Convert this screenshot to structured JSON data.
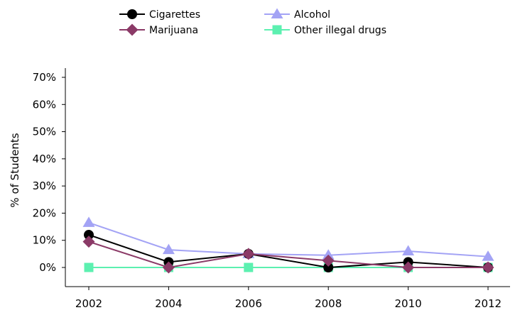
{
  "chart_data": {
    "type": "line",
    "title": "",
    "xlabel": "",
    "ylabel": "% of Students",
    "x": [
      2002,
      2004,
      2006,
      2008,
      2010,
      2012
    ],
    "x_tick_labels": [
      "2002",
      "2004",
      "2006",
      "2008",
      "2010",
      "2012"
    ],
    "y_tick_labels": [
      "0%",
      "10%",
      "20%",
      "30%",
      "40%",
      "50%",
      "60%",
      "70%"
    ],
    "ylim": [
      0,
      70
    ],
    "grid": false,
    "legend_placement": "top",
    "series": [
      {
        "name": "Cigarettes",
        "values": [
          12,
          2,
          5,
          0,
          2,
          0
        ],
        "color": "#000000",
        "marker": "circle"
      },
      {
        "name": "Alcohol",
        "values": [
          16.5,
          6.5,
          5,
          4.5,
          6,
          4
        ],
        "color": "#a3a3f5",
        "marker": "triangle"
      },
      {
        "name": "Marijuana",
        "values": [
          9.5,
          0,
          5,
          2.5,
          0,
          0
        ],
        "color": "#8b3a67",
        "marker": "diamond"
      },
      {
        "name": "Other illegal drugs",
        "values": [
          0,
          0,
          0,
          0,
          0,
          0
        ],
        "color": "#5cf0b0",
        "marker": "square"
      }
    ]
  }
}
